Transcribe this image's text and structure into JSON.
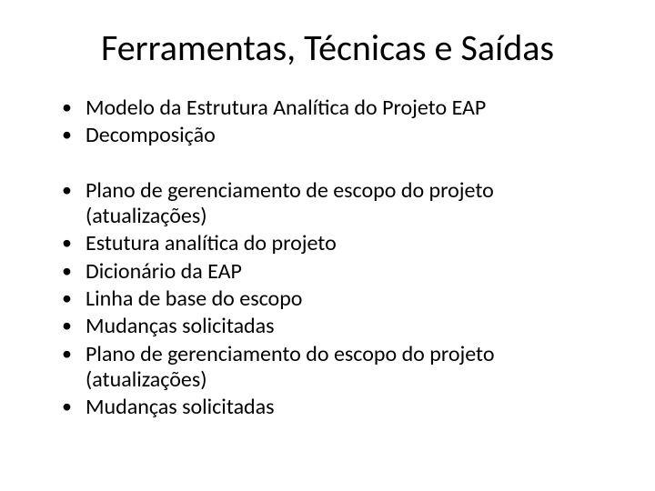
{
  "slide": {
    "title": "Ferramentas, Técnicas e Saídas",
    "title_fontsize": 40,
    "body_fontsize": 24,
    "text_color": "#000000",
    "background_color": "#ffffff",
    "bullet_char": "•",
    "groups": [
      {
        "items": [
          "Modelo da Estrutura Analítica do Projeto EAP",
          "Decomposição"
        ]
      },
      {
        "items": [
          "Plano de gerenciamento de escopo do projeto (atualizações)",
          "Estutura analítica do projeto",
          "Dicionário da EAP",
          "Linha de base do escopo",
          "Mudanças solicitadas",
          "Plano de gerenciamento do escopo do projeto (atualizações)",
          "Mudanças solicitadas"
        ]
      }
    ]
  }
}
